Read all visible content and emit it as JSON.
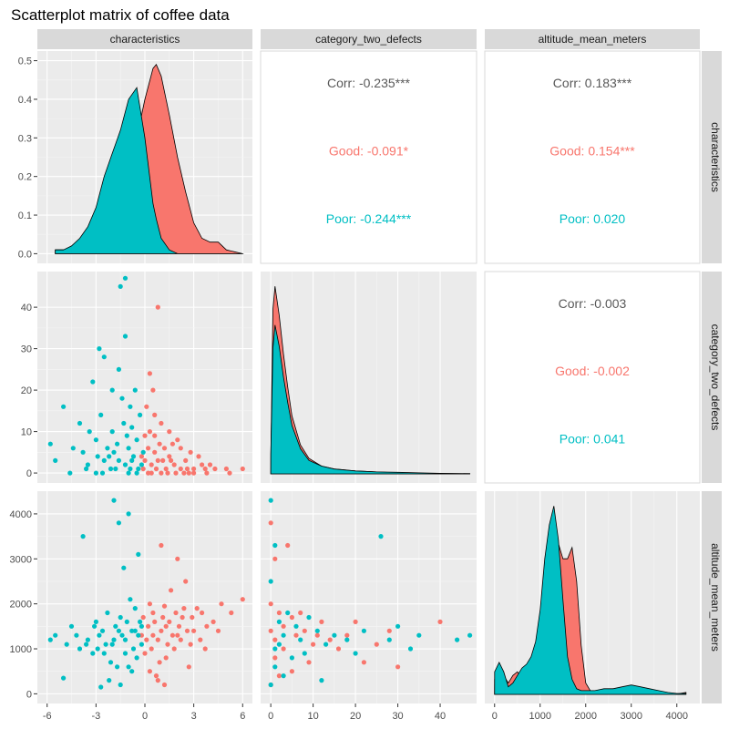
{
  "title": "Scatterplot matrix of coffee data",
  "colors": {
    "good": "#F8766D",
    "poor": "#00BFC4",
    "neutral": "#595959",
    "panel": "#EBEBEB",
    "strip": "#D9D9D9"
  },
  "chart_data": {
    "type": "scatter",
    "variables": [
      "characteristics",
      "category_two_defects",
      "altitude_mean_meters"
    ],
    "groups": [
      "Good",
      "Poor"
    ],
    "axes": {
      "characteristics": {
        "range": [
          -6.6,
          6.6
        ],
        "ticks": [
          "-6",
          "-3",
          "0",
          "3",
          "6"
        ],
        "tick_values": [
          -6,
          -3,
          0,
          3,
          6
        ]
      },
      "category_two_defects": {
        "range": [
          -2.4,
          48.6
        ],
        "ticks": [
          "0",
          "10",
          "20",
          "30",
          "40"
        ],
        "tick_values": [
          0,
          10,
          20,
          30,
          40
        ]
      },
      "altitude_mean_meters": {
        "range": [
          -215,
          4505
        ],
        "ticks": [
          "0",
          "1000",
          "2000",
          "3000",
          "4000"
        ],
        "tick_values": [
          0,
          1000,
          2000,
          3000,
          4000
        ]
      },
      "density_y": {
        "range": [
          -0.025,
          0.525
        ],
        "ticks": [
          "0.0",
          "0.1",
          "0.2",
          "0.3",
          "0.4",
          "0.5"
        ],
        "tick_values": [
          0,
          0.1,
          0.2,
          0.3,
          0.4,
          0.5
        ]
      }
    },
    "correlations": [
      {
        "pair": [
          "characteristics",
          "category_two_defects"
        ],
        "corr": "Corr: -0.235***",
        "good": "Good: -0.091*",
        "poor": "Poor: -0.244***"
      },
      {
        "pair": [
          "characteristics",
          "altitude_mean_meters"
        ],
        "corr": "Corr: 0.183***",
        "good": "Good: 0.154***",
        "poor": "Poor: 0.020"
      },
      {
        "pair": [
          "category_two_defects",
          "altitude_mean_meters"
        ],
        "corr": "Corr: -0.003",
        "good": "Good: -0.002",
        "poor": "Poor: 0.041"
      }
    ],
    "densities": {
      "characteristics": {
        "x": [
          -5.5,
          -5,
          -4.5,
          -4,
          -3.5,
          -3,
          -2.5,
          -2,
          -1.5,
          -1,
          -0.5,
          0,
          0.5,
          0.7,
          1,
          1.5,
          2,
          2.5,
          3,
          3.5,
          4,
          4.5,
          5,
          5.5,
          6
        ],
        "good": [
          0.01,
          0.01,
          0.01,
          0.01,
          0.01,
          0.02,
          0.03,
          0.06,
          0.12,
          0.2,
          0.3,
          0.4,
          0.48,
          0.49,
          0.46,
          0.36,
          0.25,
          0.16,
          0.08,
          0.04,
          0.03,
          0.03,
          0.01,
          0.005,
          0
        ],
        "poor": [
          0.01,
          0.01,
          0.02,
          0.04,
          0.07,
          0.12,
          0.2,
          0.26,
          0.32,
          0.4,
          0.43,
          0.3,
          0.13,
          0.09,
          0.04,
          0.01,
          0,
          0,
          0,
          0,
          0,
          0,
          0,
          0,
          0
        ]
      },
      "category_two_defects": {
        "x": [
          0,
          0.5,
          1,
          2,
          3,
          4,
          5,
          7,
          9,
          12,
          15,
          20,
          25,
          30,
          35,
          40,
          47
        ],
        "good": [
          0.1,
          0.85,
          0.97,
          0.82,
          0.62,
          0.45,
          0.3,
          0.15,
          0.08,
          0.04,
          0.025,
          0.015,
          0.01,
          0.005,
          0.003,
          0.002,
          0.001
        ],
        "poor": [
          0.1,
          0.65,
          0.77,
          0.66,
          0.5,
          0.37,
          0.25,
          0.13,
          0.07,
          0.04,
          0.025,
          0.015,
          0.01,
          0.008,
          0.005,
          0.003,
          0.001
        ]
      },
      "altitude_mean_meters": {
        "x": [
          0,
          100,
          200,
          300,
          400,
          500,
          600,
          700,
          800,
          900,
          1000,
          1100,
          1200,
          1300,
          1400,
          1500,
          1600,
          1700,
          1800,
          1900,
          2000,
          2100,
          2200,
          2400,
          2600,
          2800,
          3000,
          3200,
          3400,
          3600,
          3800,
          4000,
          4200
        ],
        "good": [
          0.08,
          0.14,
          0.1,
          0.06,
          0.1,
          0.12,
          0.08,
          0.05,
          0.08,
          0.14,
          0.22,
          0.38,
          0.6,
          0.78,
          0.8,
          0.72,
          0.72,
          0.78,
          0.6,
          0.26,
          0.06,
          0.02,
          0.01,
          0.02,
          0.03,
          0.02,
          0.02,
          0.03,
          0.02,
          0.01,
          0.005,
          0.002,
          0.01
        ],
        "poor": [
          0.12,
          0.17,
          0.12,
          0.04,
          0.06,
          0.1,
          0.14,
          0.16,
          0.2,
          0.28,
          0.45,
          0.72,
          0.9,
          1.0,
          0.82,
          0.5,
          0.2,
          0.08,
          0.03,
          0.02,
          0.02,
          0.02,
          0.02,
          0.03,
          0.03,
          0.04,
          0.05,
          0.04,
          0.03,
          0.02,
          0.01,
          0.005,
          0.005
        ]
      }
    },
    "scatter_defects_vs_characteristics": {
      "good": [
        [
          6,
          1
        ],
        [
          5.2,
          0
        ],
        [
          4.3,
          1
        ],
        [
          3.8,
          0
        ],
        [
          3.5,
          2
        ],
        [
          3,
          1
        ],
        [
          2.8,
          5
        ],
        [
          2.7,
          0
        ],
        [
          2.5,
          3
        ],
        [
          2.2,
          6
        ],
        [
          2,
          8
        ],
        [
          1.9,
          0
        ],
        [
          1.8,
          2
        ],
        [
          1.5,
          4
        ],
        [
          1.5,
          10
        ],
        [
          1.3,
          1
        ],
        [
          1.2,
          6
        ],
        [
          1,
          0
        ],
        [
          1,
          12
        ],
        [
          0.8,
          3
        ],
        [
          0.8,
          40
        ],
        [
          0.6,
          5
        ],
        [
          0.6,
          14
        ],
        [
          0.5,
          20
        ],
        [
          0.4,
          2
        ],
        [
          0.3,
          10
        ],
        [
          0.3,
          24
        ],
        [
          0.2,
          0
        ],
        [
          0.2,
          6
        ],
        [
          0.1,
          16
        ],
        [
          0,
          3
        ],
        [
          0,
          9
        ],
        [
          -0.1,
          1
        ],
        [
          -0.2,
          4
        ],
        [
          3,
          0
        ],
        [
          4,
          2
        ],
        [
          5,
          1
        ],
        [
          2.2,
          1
        ],
        [
          1.4,
          0
        ],
        [
          0.9,
          7
        ],
        [
          0.4,
          0
        ],
        [
          1.6,
          3
        ],
        [
          3.3,
          4
        ],
        [
          2.6,
          1
        ],
        [
          1.1,
          3
        ],
        [
          0.7,
          1
        ],
        [
          0.6,
          9
        ],
        [
          1.7,
          7
        ],
        [
          2.4,
          0
        ],
        [
          3.7,
          1
        ]
      ],
      "poor": [
        [
          -5.8,
          7
        ],
        [
          -5.5,
          3
        ],
        [
          -5,
          16
        ],
        [
          -4.6,
          0
        ],
        [
          -4,
          12
        ],
        [
          -3.8,
          5
        ],
        [
          -3.5,
          2
        ],
        [
          -3.2,
          22
        ],
        [
          -3,
          8
        ],
        [
          -2.8,
          30
        ],
        [
          -2.6,
          0
        ],
        [
          -2.5,
          28
        ],
        [
          -2.2,
          4
        ],
        [
          -2,
          20
        ],
        [
          -2,
          10
        ],
        [
          -1.8,
          1
        ],
        [
          -1.6,
          25
        ],
        [
          -1.5,
          45
        ],
        [
          -1.3,
          12
        ],
        [
          -1.2,
          2
        ],
        [
          -1,
          6
        ],
        [
          -1,
          0
        ],
        [
          -0.9,
          16
        ],
        [
          -0.8,
          3
        ],
        [
          -0.6,
          20
        ],
        [
          -0.5,
          8
        ],
        [
          -0.4,
          1
        ],
        [
          -0.3,
          14
        ],
        [
          -1.2,
          47
        ],
        [
          -2.5,
          3
        ],
        [
          -3,
          0
        ],
        [
          -1.7,
          7
        ],
        [
          -0.7,
          4
        ],
        [
          -2.1,
          1
        ],
        [
          -1.1,
          9
        ],
        [
          -0.2,
          2
        ],
        [
          -4.4,
          6
        ],
        [
          -3.4,
          10
        ],
        [
          -1.4,
          18
        ],
        [
          -0.5,
          0
        ],
        [
          -2.9,
          4
        ],
        [
          -1.9,
          5
        ],
        [
          -0.9,
          1
        ],
        [
          -0.1,
          5
        ],
        [
          -1.2,
          33
        ],
        [
          -2.7,
          14
        ],
        [
          -3.6,
          1
        ],
        [
          -1.6,
          3
        ],
        [
          -0.8,
          11
        ],
        [
          -2.3,
          6
        ]
      ]
    },
    "scatter_altitude_vs_characteristics": {
      "good": [
        [
          6,
          2100
        ],
        [
          5.3,
          1800
        ],
        [
          4.7,
          2000
        ],
        [
          4.2,
          1600
        ],
        [
          3.8,
          1500
        ],
        [
          3.5,
          1800
        ],
        [
          3.2,
          1900
        ],
        [
          3,
          1400
        ],
        [
          2.8,
          1100
        ],
        [
          2.5,
          2500
        ],
        [
          2.3,
          1700
        ],
        [
          2,
          3000
        ],
        [
          2,
          1300
        ],
        [
          1.8,
          1000
        ],
        [
          1.5,
          1600
        ],
        [
          1.3,
          800
        ],
        [
          1.2,
          1950
        ],
        [
          1,
          3300
        ],
        [
          1,
          1400
        ],
        [
          0.8,
          1200
        ],
        [
          0.7,
          400
        ],
        [
          0.5,
          1800
        ],
        [
          0.4,
          1000
        ],
        [
          0.3,
          2000
        ],
        [
          0.2,
          1500
        ],
        [
          0.1,
          1200
        ],
        [
          0,
          900
        ],
        [
          -0.1,
          1700
        ],
        [
          -0.2,
          1300
        ],
        [
          2.7,
          600
        ],
        [
          1.6,
          2300
        ],
        [
          0.9,
          700
        ],
        [
          1.2,
          200
        ],
        [
          3.4,
          1200
        ],
        [
          2.1,
          1500
        ],
        [
          0.6,
          1600
        ],
        [
          1.4,
          1100
        ],
        [
          2.9,
          1700
        ],
        [
          4.5,
          1400
        ],
        [
          1.7,
          1300
        ],
        [
          0.3,
          500
        ],
        [
          2.4,
          1900
        ],
        [
          1.1,
          1700
        ],
        [
          0.8,
          300
        ],
        [
          3.7,
          1000
        ],
        [
          2.2,
          1200
        ],
        [
          1.9,
          1800
        ],
        [
          0.5,
          1300
        ],
        [
          1.3,
          1500
        ],
        [
          2.6,
          1400
        ]
      ],
      "poor": [
        [
          -5.8,
          1200
        ],
        [
          -5.5,
          1300
        ],
        [
          -5,
          350
        ],
        [
          -4.5,
          1500
        ],
        [
          -4,
          1000
        ],
        [
          -3.8,
          3500
        ],
        [
          -3.5,
          1200
        ],
        [
          -3,
          1600
        ],
        [
          -2.8,
          1300
        ],
        [
          -2.5,
          900
        ],
        [
          -2.3,
          1800
        ],
        [
          -2.2,
          300
        ],
        [
          -2,
          1100
        ],
        [
          -1.9,
          4300
        ],
        [
          -1.8,
          1500
        ],
        [
          -1.6,
          3800
        ],
        [
          -1.5,
          1700
        ],
        [
          -1.3,
          2800
        ],
        [
          -1.2,
          1200
        ],
        [
          -1,
          4000
        ],
        [
          -1,
          600
        ],
        [
          -0.8,
          1400
        ],
        [
          -0.6,
          1900
        ],
        [
          -0.5,
          800
        ],
        [
          -0.4,
          3100
        ],
        [
          -0.3,
          1600
        ],
        [
          -0.2,
          1100
        ],
        [
          -2.7,
          150
        ],
        [
          -3.2,
          900
        ],
        [
          -1.7,
          600
        ],
        [
          -2.6,
          1400
        ],
        [
          -0.9,
          2100
        ],
        [
          -3.6,
          1100
        ],
        [
          -1.4,
          1300
        ],
        [
          -0.7,
          1000
        ],
        [
          -2.1,
          700
        ],
        [
          -1.1,
          1600
        ],
        [
          -0.4,
          1300
        ],
        [
          -4.2,
          1300
        ],
        [
          -2.9,
          1000
        ],
        [
          -1.5,
          200
        ],
        [
          -0.8,
          500
        ],
        [
          -1.9,
          1200
        ],
        [
          -3.1,
          1500
        ],
        [
          -2.4,
          1100
        ],
        [
          -1.2,
          900
        ],
        [
          -0.6,
          1400
        ],
        [
          -4.8,
          1100
        ],
        [
          -1.6,
          1400
        ],
        [
          -0.2,
          1500
        ]
      ]
    },
    "scatter_altitude_vs_defects": {
      "good": [
        [
          0,
          3800
        ],
        [
          1,
          3000
        ],
        [
          0,
          2000
        ],
        [
          2,
          1800
        ],
        [
          3,
          1500
        ],
        [
          1,
          1200
        ],
        [
          5,
          1700
        ],
        [
          6,
          1300
        ],
        [
          8,
          1400
        ],
        [
          10,
          1100
        ],
        [
          12,
          1600
        ],
        [
          14,
          1200
        ],
        [
          16,
          1000
        ],
        [
          18,
          1300
        ],
        [
          20,
          1600
        ],
        [
          22,
          700
        ],
        [
          25,
          1100
        ],
        [
          28,
          1400
        ],
        [
          30,
          600
        ],
        [
          40,
          1600
        ],
        [
          0,
          200
        ],
        [
          2,
          400
        ],
        [
          4,
          3300
        ],
        [
          7,
          1800
        ],
        [
          9,
          700
        ],
        [
          11,
          1300
        ],
        [
          3,
          1000
        ],
        [
          1,
          800
        ],
        [
          5,
          500
        ],
        [
          0,
          1400
        ]
      ],
      "poor": [
        [
          0,
          4300
        ],
        [
          1,
          3300
        ],
        [
          0,
          2500
        ],
        [
          2,
          1600
        ],
        [
          3,
          1300
        ],
        [
          4,
          1800
        ],
        [
          1,
          1000
        ],
        [
          6,
          1500
        ],
        [
          7,
          1200
        ],
        [
          9,
          1700
        ],
        [
          11,
          1400
        ],
        [
          13,
          1100
        ],
        [
          15,
          1300
        ],
        [
          18,
          1200
        ],
        [
          20,
          900
        ],
        [
          22,
          1400
        ],
        [
          26,
          3500
        ],
        [
          28,
          1200
        ],
        [
          30,
          1500
        ],
        [
          33,
          1000
        ],
        [
          35,
          1300
        ],
        [
          44,
          1200
        ],
        [
          47,
          1300
        ],
        [
          0,
          200
        ],
        [
          1,
          600
        ],
        [
          3,
          400
        ],
        [
          5,
          800
        ],
        [
          8,
          900
        ],
        [
          12,
          300
        ],
        [
          2,
          1100
        ]
      ]
    }
  }
}
